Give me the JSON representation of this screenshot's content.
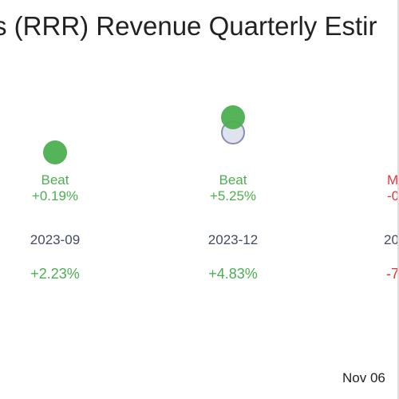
{
  "chart_data": {
    "type": "scatter",
    "title": "s (RRR) Revenue Quarterly Estir",
    "quarters": [
      {
        "period": "2023-09",
        "result": "Beat",
        "surprise": "+0.19%",
        "growth": "+2.23%",
        "status": "beat",
        "has_estimate_marker": false
      },
      {
        "period": "2023-12",
        "result": "Beat",
        "surprise": "+5.25%",
        "growth": "+4.83%",
        "status": "beat",
        "has_estimate_marker": true
      },
      {
        "period": "20",
        "result": "M",
        "surprise": "-0",
        "growth": "-7",
        "status": "miss",
        "has_estimate_marker": false
      }
    ],
    "footer_date": "Nov 06"
  },
  "colors": {
    "beat": "#4caf50",
    "miss": "#e53935",
    "estimate_fill": "#dfe3ee",
    "estimate_stroke": "#8a8fb0",
    "period_text": "#444a66"
  }
}
